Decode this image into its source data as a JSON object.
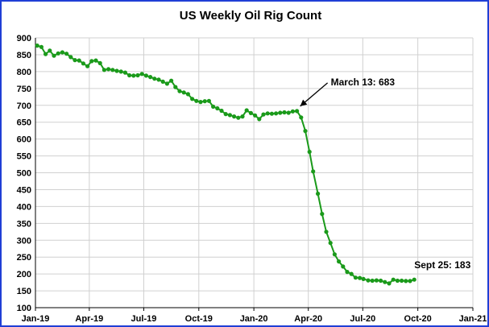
{
  "chart_data": {
    "type": "line",
    "title": "US Weekly Oil Rig Count",
    "xlabel": "",
    "ylabel": "",
    "ylim": [
      100,
      900
    ],
    "yticks": [
      100,
      150,
      200,
      250,
      300,
      350,
      400,
      450,
      500,
      550,
      600,
      650,
      700,
      750,
      800,
      850,
      900
    ],
    "xlim": [
      "2019-01-01",
      "2021-01-01"
    ],
    "xticks": [
      {
        "date": "2019-01-01",
        "label": "Jan-19"
      },
      {
        "date": "2019-04-01",
        "label": "Apr-19"
      },
      {
        "date": "2019-07-01",
        "label": "Jul-19"
      },
      {
        "date": "2019-10-01",
        "label": "Oct-19"
      },
      {
        "date": "2020-01-01",
        "label": "Jan-20"
      },
      {
        "date": "2020-04-01",
        "label": "Apr-20"
      },
      {
        "date": "2020-07-01",
        "label": "Jul-20"
      },
      {
        "date": "2020-10-01",
        "label": "Oct-20"
      },
      {
        "date": "2021-01-01",
        "label": "Jan-21"
      }
    ],
    "grid": true,
    "legend": "none",
    "series": [
      {
        "color": "#1a9a1a",
        "x": [
          "2019-01-04",
          "2019-01-11",
          "2019-01-18",
          "2019-01-25",
          "2019-02-01",
          "2019-02-08",
          "2019-02-15",
          "2019-02-22",
          "2019-03-01",
          "2019-03-08",
          "2019-03-15",
          "2019-03-22",
          "2019-03-29",
          "2019-04-05",
          "2019-04-12",
          "2019-04-19",
          "2019-04-26",
          "2019-05-03",
          "2019-05-10",
          "2019-05-17",
          "2019-05-24",
          "2019-05-31",
          "2019-06-07",
          "2019-06-14",
          "2019-06-21",
          "2019-06-28",
          "2019-07-05",
          "2019-07-12",
          "2019-07-19",
          "2019-07-26",
          "2019-08-02",
          "2019-08-09",
          "2019-08-16",
          "2019-08-23",
          "2019-08-30",
          "2019-09-06",
          "2019-09-13",
          "2019-09-20",
          "2019-09-27",
          "2019-10-04",
          "2019-10-11",
          "2019-10-18",
          "2019-10-25",
          "2019-11-01",
          "2019-11-08",
          "2019-11-15",
          "2019-11-22",
          "2019-11-29",
          "2019-12-06",
          "2019-12-13",
          "2019-12-20",
          "2019-12-27",
          "2020-01-03",
          "2020-01-10",
          "2020-01-17",
          "2020-01-24",
          "2020-01-31",
          "2020-02-07",
          "2020-02-14",
          "2020-02-21",
          "2020-02-28",
          "2020-03-06",
          "2020-03-13",
          "2020-03-20",
          "2020-03-27",
          "2020-04-03",
          "2020-04-09",
          "2020-04-17",
          "2020-04-24",
          "2020-05-01",
          "2020-05-08",
          "2020-05-15",
          "2020-05-22",
          "2020-05-29",
          "2020-06-05",
          "2020-06-12",
          "2020-06-19",
          "2020-06-26",
          "2020-07-02",
          "2020-07-10",
          "2020-07-17",
          "2020-07-24",
          "2020-07-31",
          "2020-08-07",
          "2020-08-14",
          "2020-08-21",
          "2020-08-28",
          "2020-09-04",
          "2020-09-11",
          "2020-09-18",
          "2020-09-25"
        ],
        "values": [
          877,
          873,
          852,
          862,
          847,
          854,
          857,
          853,
          843,
          834,
          833,
          824,
          816,
          831,
          833,
          825,
          805,
          807,
          805,
          802,
          800,
          797,
          789,
          788,
          789,
          793,
          788,
          784,
          779,
          776,
          770,
          764,
          773,
          754,
          742,
          738,
          733,
          719,
          713,
          710,
          712,
          713,
          696,
          691,
          684,
          674,
          671,
          667,
          663,
          667,
          685,
          677,
          670,
          659,
          673,
          676,
          675,
          676,
          678,
          679,
          678,
          682,
          683,
          664,
          624,
          562,
          504,
          438,
          378,
          325,
          292,
          258,
          237,
          222,
          206,
          200,
          189,
          188,
          185,
          181,
          180,
          181,
          180,
          176,
          172,
          183,
          180,
          180,
          179,
          179,
          183
        ]
      }
    ],
    "annotations": [
      {
        "text": "March 13: 683",
        "x": "2020-03-13",
        "y": 683,
        "arrow": true
      },
      {
        "text": "Sept 25: 183",
        "x": "2020-09-25",
        "y": 183,
        "arrow": false
      }
    ]
  }
}
